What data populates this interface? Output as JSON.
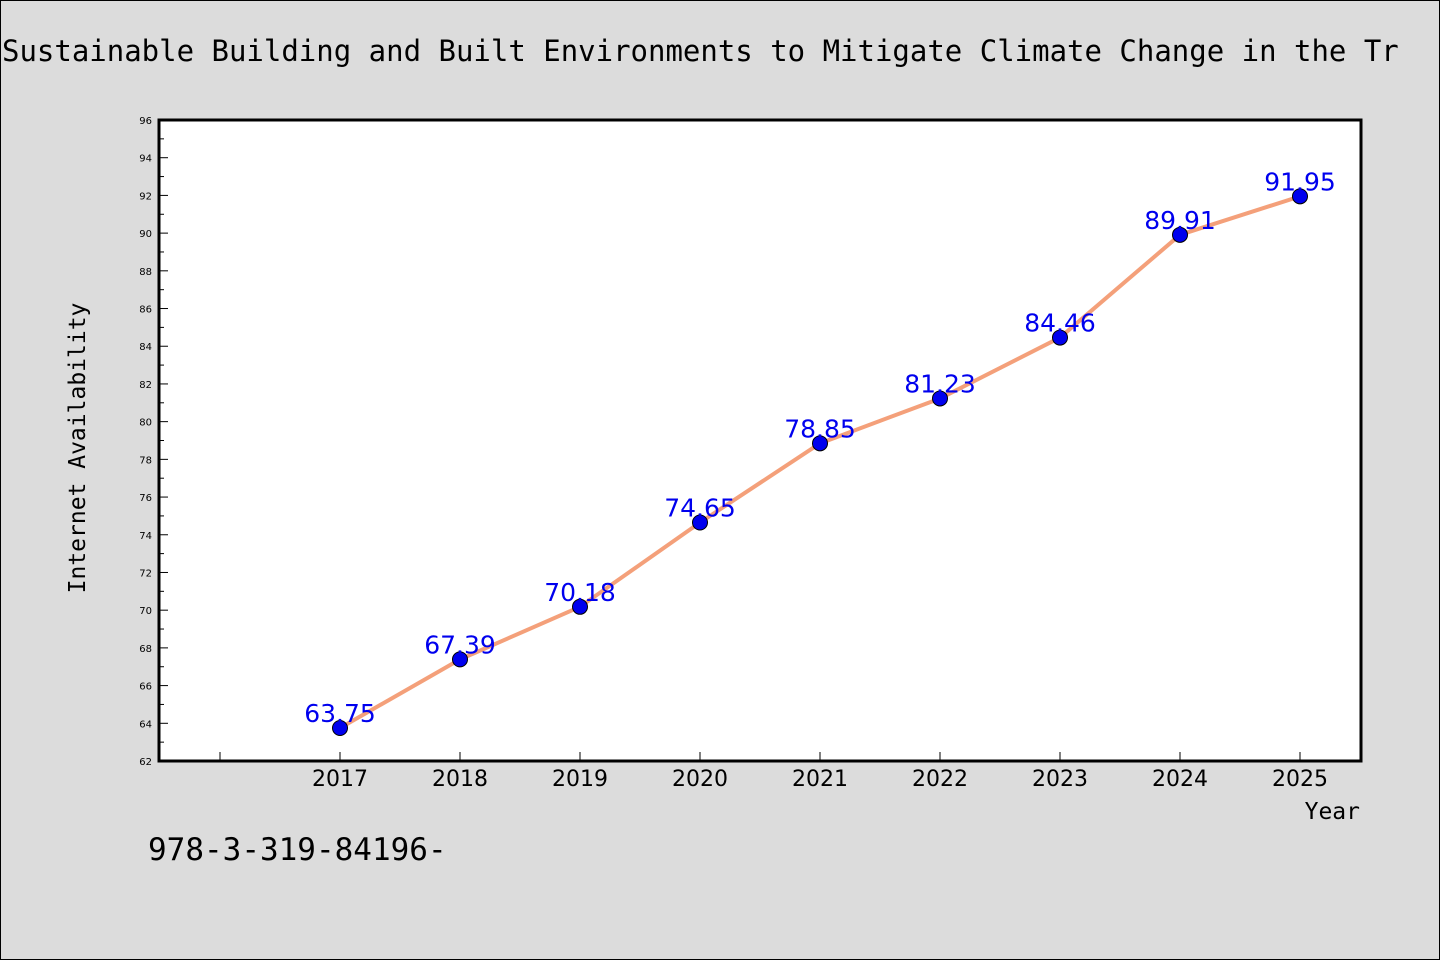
{
  "chart_data": {
    "type": "line",
    "title": "Sustainable Building and Built Environments to Mitigate Climate Change in the Tr",
    "xlabel": "Year",
    "ylabel": "Internet Availability",
    "categories": [
      "2017",
      "2018",
      "2019",
      "2020",
      "2021",
      "2022",
      "2023",
      "2024",
      "2025"
    ],
    "series": [
      {
        "values": [
          63.75,
          67.39,
          70.18,
          74.65,
          78.85,
          81.23,
          84.46,
          89.91,
          91.95
        ],
        "labels": [
          "63.75",
          "67.39",
          "70.18",
          "74.65",
          "78.85",
          "81.23",
          "84.46",
          "89.91",
          "91.95"
        ],
        "color": "#f4a07a",
        "marker_color": "#0000ee"
      }
    ],
    "ylim": [
      62,
      96
    ],
    "yticks": [
      62,
      64,
      66,
      68,
      70,
      72,
      74,
      76,
      78,
      80,
      82,
      84,
      86,
      88,
      90,
      92,
      94,
      96
    ],
    "grid": false,
    "legend": "none",
    "plot_background": "#ffffff",
    "figure_background": "#dcdcdc"
  },
  "caption": "978-3-319-84196-"
}
